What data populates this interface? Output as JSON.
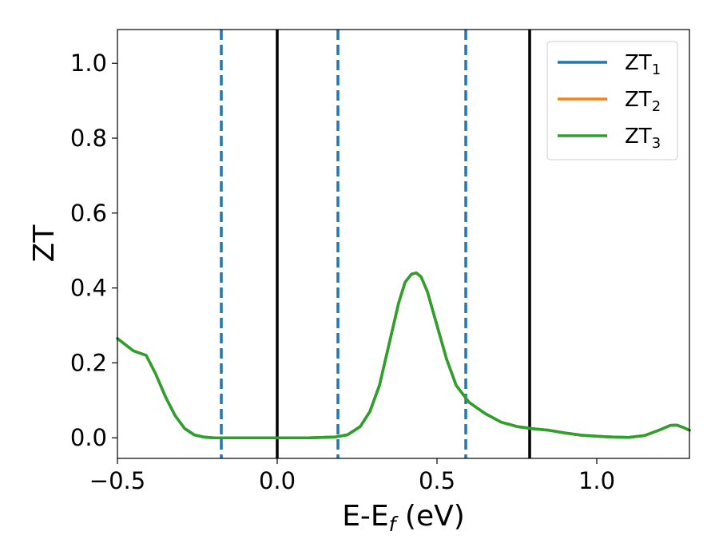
{
  "chart_data": {
    "type": "line",
    "title": "",
    "xlabel": "E-E",
    "xlabel_sub": "f",
    "xlabel_unit": " (eV)",
    "ylabel": "ZT",
    "xlim": [
      -0.5,
      1.29
    ],
    "ylim": [
      -0.055,
      1.09
    ],
    "x_ticks": [
      {
        "value": -0.5,
        "label": "−0.5"
      },
      {
        "value": 0.0,
        "label": "0.0"
      },
      {
        "value": 0.5,
        "label": "0.5"
      },
      {
        "value": 1.0,
        "label": "1.0"
      }
    ],
    "y_ticks": [
      {
        "value": 0.0,
        "label": "0.0"
      },
      {
        "value": 0.2,
        "label": "0.2"
      },
      {
        "value": 0.4,
        "label": "0.4"
      },
      {
        "value": 0.6,
        "label": "0.6"
      },
      {
        "value": 0.8,
        "label": "0.8"
      },
      {
        "value": 1.0,
        "label": "1.0"
      }
    ],
    "grid": false,
    "legend_position": "top-right",
    "series": [
      {
        "name": "ZT",
        "sub": "1",
        "color": "#1f77b4",
        "x": [
          -0.5,
          -0.45,
          -0.41,
          -0.38,
          -0.35,
          -0.32,
          -0.29,
          -0.26,
          -0.23,
          -0.2,
          -0.15,
          -0.1,
          0.0,
          0.1,
          0.18,
          0.22,
          0.26,
          0.29,
          0.32,
          0.35,
          0.38,
          0.4,
          0.42,
          0.435,
          0.45,
          0.47,
          0.5,
          0.53,
          0.56,
          0.6,
          0.65,
          0.7,
          0.75,
          0.8,
          0.85,
          0.9,
          0.95,
          1.0,
          1.05,
          1.1,
          1.15,
          1.2,
          1.23,
          1.25,
          1.27,
          1.29
        ],
        "y": [
          0.265,
          0.232,
          0.22,
          0.17,
          0.11,
          0.06,
          0.025,
          0.008,
          0.002,
          0.0,
          0.0,
          0.0,
          0.0,
          0.0,
          0.002,
          0.008,
          0.03,
          0.07,
          0.14,
          0.25,
          0.36,
          0.415,
          0.437,
          0.44,
          0.43,
          0.39,
          0.3,
          0.21,
          0.14,
          0.095,
          0.065,
          0.042,
          0.03,
          0.024,
          0.02,
          0.013,
          0.007,
          0.004,
          0.002,
          0.001,
          0.006,
          0.022,
          0.033,
          0.034,
          0.028,
          0.02
        ]
      },
      {
        "name": "ZT",
        "sub": "2",
        "color": "#ff7f0e",
        "x": [
          -0.5,
          -0.45,
          -0.41,
          -0.38,
          -0.35,
          -0.32,
          -0.29,
          -0.26,
          -0.23,
          -0.2,
          -0.15,
          -0.1,
          0.0,
          0.1,
          0.18,
          0.22,
          0.26,
          0.29,
          0.32,
          0.35,
          0.38,
          0.4,
          0.42,
          0.435,
          0.45,
          0.47,
          0.5,
          0.53,
          0.56,
          0.6,
          0.65,
          0.7,
          0.75,
          0.8,
          0.85,
          0.9,
          0.95,
          1.0,
          1.05,
          1.1,
          1.15,
          1.2,
          1.23,
          1.25,
          1.27,
          1.29
        ],
        "y": [
          0.265,
          0.232,
          0.22,
          0.17,
          0.11,
          0.06,
          0.025,
          0.008,
          0.002,
          0.0,
          0.0,
          0.0,
          0.0,
          0.0,
          0.002,
          0.008,
          0.03,
          0.07,
          0.14,
          0.25,
          0.36,
          0.415,
          0.437,
          0.44,
          0.43,
          0.39,
          0.3,
          0.21,
          0.14,
          0.095,
          0.065,
          0.042,
          0.03,
          0.024,
          0.02,
          0.013,
          0.007,
          0.004,
          0.002,
          0.001,
          0.006,
          0.022,
          0.033,
          0.034,
          0.028,
          0.02
        ]
      },
      {
        "name": "ZT",
        "sub": "3",
        "color": "#2ca02c",
        "x": [
          -0.5,
          -0.45,
          -0.41,
          -0.38,
          -0.35,
          -0.32,
          -0.29,
          -0.26,
          -0.23,
          -0.2,
          -0.15,
          -0.1,
          0.0,
          0.1,
          0.18,
          0.22,
          0.26,
          0.29,
          0.32,
          0.35,
          0.38,
          0.4,
          0.42,
          0.435,
          0.45,
          0.47,
          0.5,
          0.53,
          0.56,
          0.6,
          0.65,
          0.7,
          0.75,
          0.8,
          0.85,
          0.9,
          0.95,
          1.0,
          1.05,
          1.1,
          1.15,
          1.2,
          1.23,
          1.25,
          1.27,
          1.29
        ],
        "y": [
          0.265,
          0.232,
          0.22,
          0.17,
          0.11,
          0.06,
          0.025,
          0.008,
          0.002,
          0.0,
          0.0,
          0.0,
          0.0,
          0.0,
          0.002,
          0.008,
          0.03,
          0.07,
          0.14,
          0.25,
          0.36,
          0.415,
          0.437,
          0.44,
          0.43,
          0.39,
          0.3,
          0.21,
          0.14,
          0.095,
          0.065,
          0.042,
          0.03,
          0.024,
          0.02,
          0.013,
          0.007,
          0.004,
          0.002,
          0.001,
          0.006,
          0.022,
          0.033,
          0.034,
          0.028,
          0.02
        ]
      }
    ],
    "vertical_lines": [
      {
        "x": -0.175,
        "style": "dashed",
        "color": "#1f77b4"
      },
      {
        "x": 0.0,
        "style": "solid",
        "color": "#000000"
      },
      {
        "x": 0.19,
        "style": "dashed",
        "color": "#1f77b4"
      },
      {
        "x": 0.59,
        "style": "dashed",
        "color": "#1f77b4"
      },
      {
        "x": 0.79,
        "style": "solid",
        "color": "#000000"
      }
    ]
  }
}
